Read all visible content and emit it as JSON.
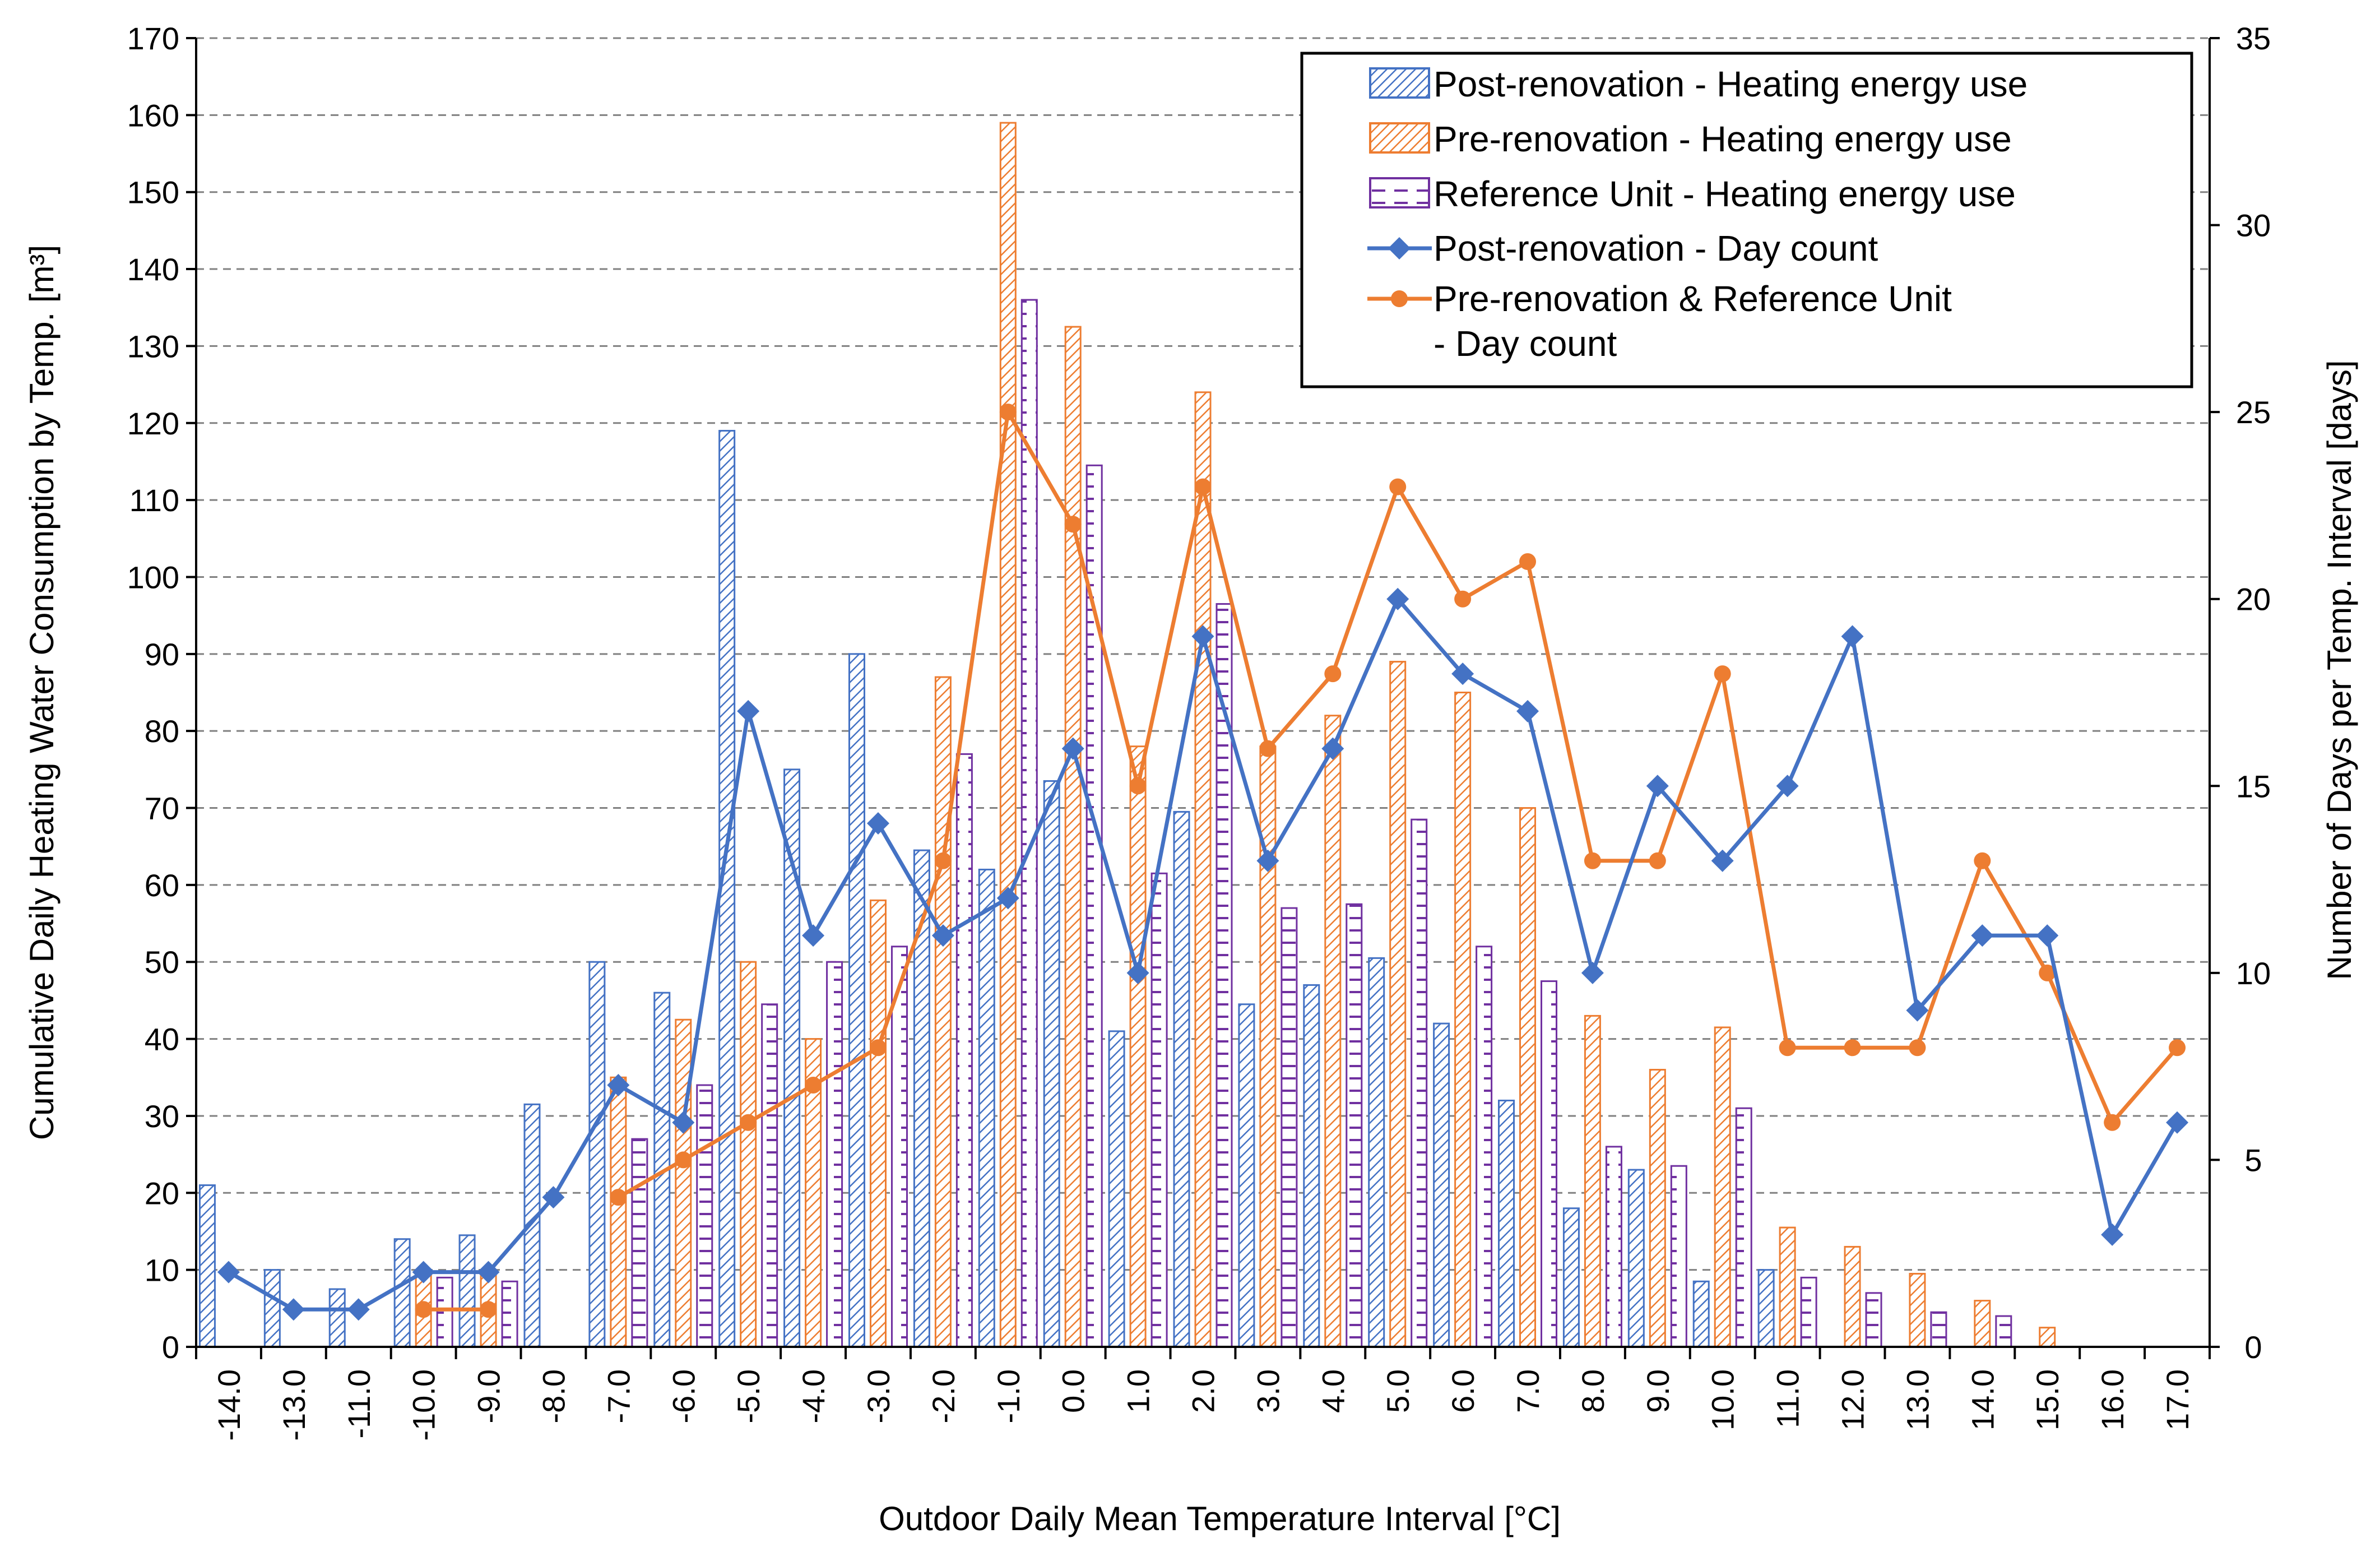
{
  "chart_data": {
    "type": "bar",
    "title": "",
    "xlabel": "Outdoor Daily Mean Temperature Interval [°C]",
    "ylabel_left": "Cumulative Daily Heating Water Consumption by Temp. [m³]",
    "ylabel_right": "Number of Days per Temp. Interval [days]",
    "ylim_left": [
      0,
      170
    ],
    "ylim_right": [
      0,
      35
    ],
    "yticks_left": [
      "0",
      "10",
      "20",
      "30",
      "40",
      "50",
      "60",
      "70",
      "80",
      "90",
      "100",
      "110",
      "120",
      "130",
      "140",
      "150",
      "160",
      "170"
    ],
    "yticks_right": [
      "0",
      "5",
      "10",
      "15",
      "20",
      "25",
      "30",
      "35"
    ],
    "grid": "horizontal dashed",
    "legend_position": "top-right",
    "categories": [
      "-14.0",
      "-13.0",
      "-11.0",
      "-10.0",
      "-9.0",
      "-8.0",
      "-7.0",
      "-6.0",
      "-5.0",
      "-4.0",
      "-3.0",
      "-2.0",
      "-1.0",
      "0.0",
      "1.0",
      "2.0",
      "3.0",
      "4.0",
      "5.0",
      "6.0",
      "7.0",
      "8.0",
      "9.0",
      "10.0",
      "11.0",
      "12.0",
      "13.0",
      "14.0",
      "15.0",
      "16.0",
      "17.0"
    ],
    "series": [
      {
        "name": "Post-renovation - Heating energy use",
        "kind": "bar",
        "axis": "left",
        "color": "#4472c4",
        "pattern": "diagonal",
        "values": [
          21,
          10,
          7.5,
          14,
          14.5,
          31.5,
          50,
          46,
          119,
          75,
          90,
          64.5,
          62,
          73.5,
          41,
          69.5,
          44.5,
          47,
          50.5,
          42,
          32,
          18,
          23,
          8.5,
          10,
          null,
          null,
          null,
          null,
          null,
          null
        ]
      },
      {
        "name": "Pre-renovation - Heating energy use",
        "kind": "bar",
        "axis": "left",
        "color": "#ed7d31",
        "pattern": "diagonal",
        "values": [
          null,
          null,
          null,
          9.5,
          10,
          null,
          35,
          42.5,
          50,
          40,
          58,
          87,
          159,
          132.5,
          78,
          124,
          78,
          82,
          89,
          85,
          70,
          43,
          36,
          41.5,
          15.5,
          13,
          9.5,
          6,
          2.5,
          null,
          null
        ]
      },
      {
        "name": "Reference Unit - Heating energy use",
        "kind": "bar",
        "axis": "left",
        "color": "#7030a0",
        "pattern": "dashed-vertical",
        "values": [
          null,
          null,
          null,
          9,
          8.5,
          null,
          27,
          34,
          44.5,
          50,
          52,
          77,
          136,
          114.5,
          61.5,
          96.5,
          57,
          57.5,
          68.5,
          52,
          47.5,
          26,
          23.5,
          31,
          9,
          7,
          4.5,
          4,
          null,
          null,
          null
        ]
      },
      {
        "name": "Post-renovation - Day count",
        "kind": "line",
        "axis": "right",
        "color": "#4472c4",
        "marker": "diamond",
        "values": [
          2,
          1,
          1,
          2,
          2,
          4,
          7,
          6,
          17,
          11,
          14,
          11,
          12,
          16,
          10,
          19,
          13,
          16,
          20,
          18,
          17,
          10,
          15,
          13,
          15,
          19,
          9,
          11,
          11,
          3,
          6
        ]
      },
      {
        "name": "Pre-renovation & Reference Unit",
        "name_line2": "- Day count",
        "kind": "line",
        "axis": "right",
        "color": "#ed7d31",
        "marker": "circle",
        "values": [
          null,
          null,
          null,
          1,
          1,
          null,
          4,
          5,
          6,
          7,
          8,
          13,
          25,
          22,
          15,
          23,
          16,
          18,
          23,
          20,
          21,
          13,
          13,
          18,
          8,
          8,
          8,
          13,
          10,
          6,
          8
        ]
      }
    ]
  }
}
